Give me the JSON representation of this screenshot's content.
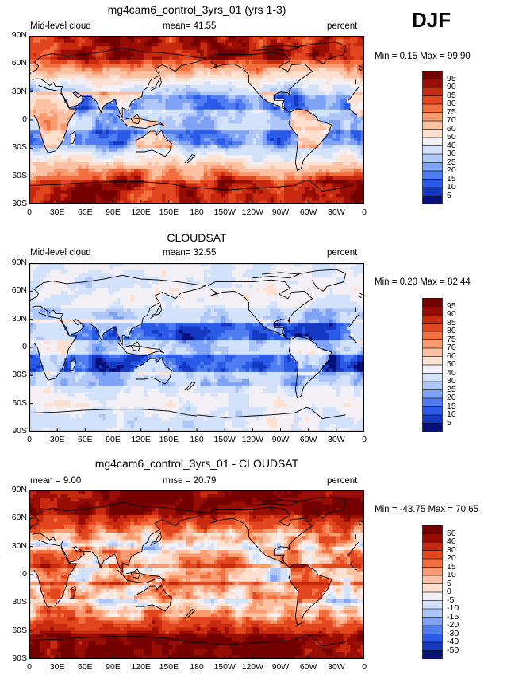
{
  "season": "DJF",
  "colors": {
    "fill_scale_abs": [
      "#08107a",
      "#1538c2",
      "#2a5ae8",
      "#4f7cf0",
      "#7ea2f5",
      "#aec6f8",
      "#d3e2fb",
      "#f2f0f4",
      "#fde0d0",
      "#fcc0a2",
      "#f99b70",
      "#f2703f",
      "#e2461f",
      "#c82a10",
      "#990e04",
      "#750000"
    ],
    "fill_scale_diff": [
      "#08107a",
      "#1538c2",
      "#2a5ae8",
      "#4f7cf0",
      "#7ea2f5",
      "#aec6f8",
      "#d3e2fb",
      "#f2f0f4",
      "#fde0d0",
      "#fcc0a2",
      "#f99b70",
      "#f2703f",
      "#e2461f",
      "#c82a10",
      "#990e04",
      "#750000"
    ],
    "coast": "#000000"
  },
  "panels": [
    {
      "title": "mg4cam6_control_3yrs_01 (yrs 1-3)",
      "left_label": "Mid-level cloud",
      "center_label": "mean=  41.55",
      "right_label": "percent",
      "minmax": "Min =    0.15 Max =   99.90",
      "field_type": "model"
    },
    {
      "title": "CLOUDSAT",
      "left_label": "Mid-level cloud",
      "center_label": "mean=  32.55",
      "right_label": "percent",
      "minmax": "Min =    0.20 Max =   82.44",
      "field_type": "obs"
    },
    {
      "title": "mg4cam6_control_3yrs_01 - CLOUDSAT",
      "left_label": "mean =    9.00",
      "center_label": "rmse =   20.79",
      "right_label": "percent",
      "minmax": "Min = -43.75 Max =   70.65",
      "field_type": "diff"
    }
  ],
  "lat_ticks": [
    "90N",
    "60N",
    "30N",
    "0",
    "30S",
    "60S",
    "90S"
  ],
  "lon_ticks": [
    "0",
    "30E",
    "60E",
    "90E",
    "120E",
    "150E",
    "180",
    "150W",
    "120W",
    "90W",
    "60W",
    "30W",
    "0"
  ],
  "colorbar_abs": [
    "95",
    "90",
    "85",
    "80",
    "75",
    "70",
    "60",
    "50",
    "40",
    "30",
    "25",
    "20",
    "15",
    "10",
    "5"
  ],
  "colorbar_diff": [
    "50",
    "40",
    "30",
    "20",
    "15",
    "10",
    "5",
    "0",
    "-5",
    "-10",
    "-15",
    "-20",
    "-30",
    "-40",
    "-50"
  ]
}
